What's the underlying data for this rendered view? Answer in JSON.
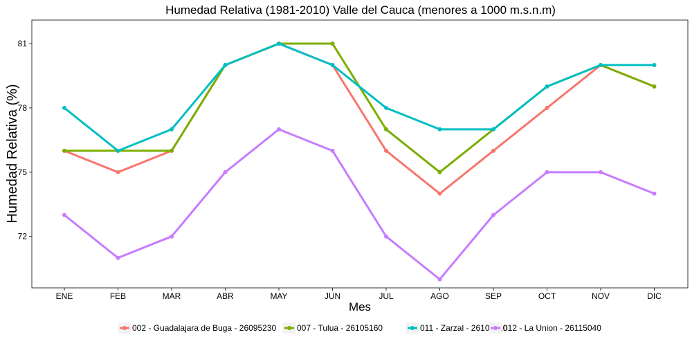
{
  "chart_data": {
    "type": "line",
    "title": "Humedad Relativa (1981-2010) Valle del Cauca (menores a 1000 m.s.n.m)",
    "xlabel": "Mes",
    "ylabel": "Humedad Relativa (%)",
    "categories": [
      "ENE",
      "FEB",
      "MAR",
      "ABR",
      "MAY",
      "JUN",
      "JUL",
      "AGO",
      "SEP",
      "OCT",
      "NOV",
      "DIC"
    ],
    "ylim": [
      69.6,
      82.1
    ],
    "yticks": [
      72,
      75,
      78,
      81
    ],
    "grid": false,
    "legend_position": "bottom",
    "series": [
      {
        "name": "002 - Guadalajara de Buga - 26095230",
        "color": "#F8766D",
        "values": [
          76,
          75,
          76,
          80,
          81,
          80,
          76,
          74,
          76,
          78,
          80,
          79
        ]
      },
      {
        "name": "007 - Tulua - 26105160",
        "color": "#7CAE00",
        "values": [
          76,
          76,
          76,
          80,
          81,
          81,
          77,
          75,
          77,
          79,
          80,
          79
        ]
      },
      {
        "name": "011 - Zarzal - 26105110",
        "color": "#00BFC4",
        "values": [
          78,
          76,
          77,
          80,
          81,
          80,
          78,
          77,
          77,
          79,
          80,
          80
        ]
      },
      {
        "name": "012 - La Union - 26115040",
        "color": "#C77CFF",
        "values": [
          73,
          71,
          72,
          75,
          77,
          76,
          72,
          70,
          73,
          75,
          75,
          74
        ]
      }
    ]
  }
}
